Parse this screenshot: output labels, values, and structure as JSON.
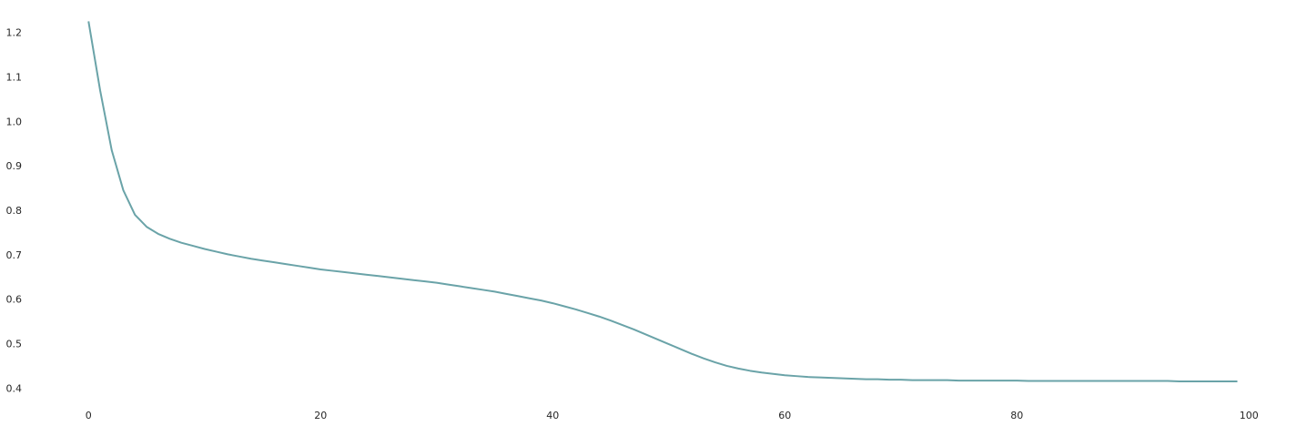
{
  "chart_data": {
    "type": "line",
    "title": "",
    "xlabel": "",
    "ylabel": "",
    "xlim": [
      -7,
      105
    ],
    "ylim": [
      0.368,
      1.228
    ],
    "x_ticks": [
      0,
      20,
      40,
      60,
      80,
      100
    ],
    "y_ticks": [
      0.4,
      0.5,
      0.6,
      0.7,
      0.8,
      0.9,
      1.0,
      1.1,
      1.2
    ],
    "x_tick_labels": [
      "0",
      "20",
      "40",
      "60",
      "80",
      "100"
    ],
    "y_tick_labels": [
      "0.4",
      "0.5",
      "0.6",
      "0.7",
      "0.8",
      "0.9",
      "1.0",
      "1.1",
      "1.2"
    ],
    "grid": false,
    "colors": {
      "line": "#6aa3a8",
      "text": "#262626",
      "background": "#ffffff"
    },
    "series": [
      {
        "x": [
          0,
          1,
          2,
          3,
          4,
          5,
          6,
          7,
          8,
          9,
          10,
          11,
          12,
          13,
          14,
          15,
          16,
          17,
          18,
          19,
          20,
          21,
          22,
          23,
          24,
          25,
          26,
          27,
          28,
          29,
          30,
          31,
          32,
          33,
          34,
          35,
          36,
          37,
          38,
          39,
          40,
          41,
          42,
          43,
          44,
          45,
          46,
          47,
          48,
          49,
          50,
          51,
          52,
          53,
          54,
          55,
          56,
          57,
          58,
          59,
          60,
          61,
          62,
          63,
          64,
          65,
          66,
          67,
          68,
          69,
          70,
          71,
          72,
          73,
          74,
          75,
          76,
          77,
          78,
          79,
          80,
          81,
          82,
          83,
          84,
          85,
          86,
          87,
          88,
          89,
          90,
          91,
          92,
          93,
          94,
          95,
          96,
          97,
          98,
          99
        ],
        "y": [
          1.225,
          1.07,
          0.935,
          0.845,
          0.79,
          0.763,
          0.747,
          0.736,
          0.727,
          0.72,
          0.713,
          0.707,
          0.701,
          0.696,
          0.691,
          0.687,
          0.683,
          0.679,
          0.675,
          0.671,
          0.667,
          0.664,
          0.661,
          0.658,
          0.655,
          0.652,
          0.649,
          0.646,
          0.643,
          0.64,
          0.637,
          0.633,
          0.629,
          0.625,
          0.621,
          0.617,
          0.612,
          0.607,
          0.602,
          0.597,
          0.591,
          0.584,
          0.577,
          0.569,
          0.561,
          0.552,
          0.542,
          0.532,
          0.521,
          0.51,
          0.499,
          0.488,
          0.477,
          0.467,
          0.458,
          0.45,
          0.444,
          0.439,
          0.435,
          0.432,
          0.429,
          0.427,
          0.425,
          0.424,
          0.423,
          0.422,
          0.421,
          0.42,
          0.42,
          0.419,
          0.419,
          0.418,
          0.418,
          0.418,
          0.418,
          0.417,
          0.417,
          0.417,
          0.417,
          0.417,
          0.417,
          0.416,
          0.416,
          0.416,
          0.416,
          0.416,
          0.416,
          0.416,
          0.416,
          0.416,
          0.416,
          0.416,
          0.416,
          0.416,
          0.415,
          0.415,
          0.415,
          0.415,
          0.415,
          0.415
        ]
      }
    ]
  }
}
